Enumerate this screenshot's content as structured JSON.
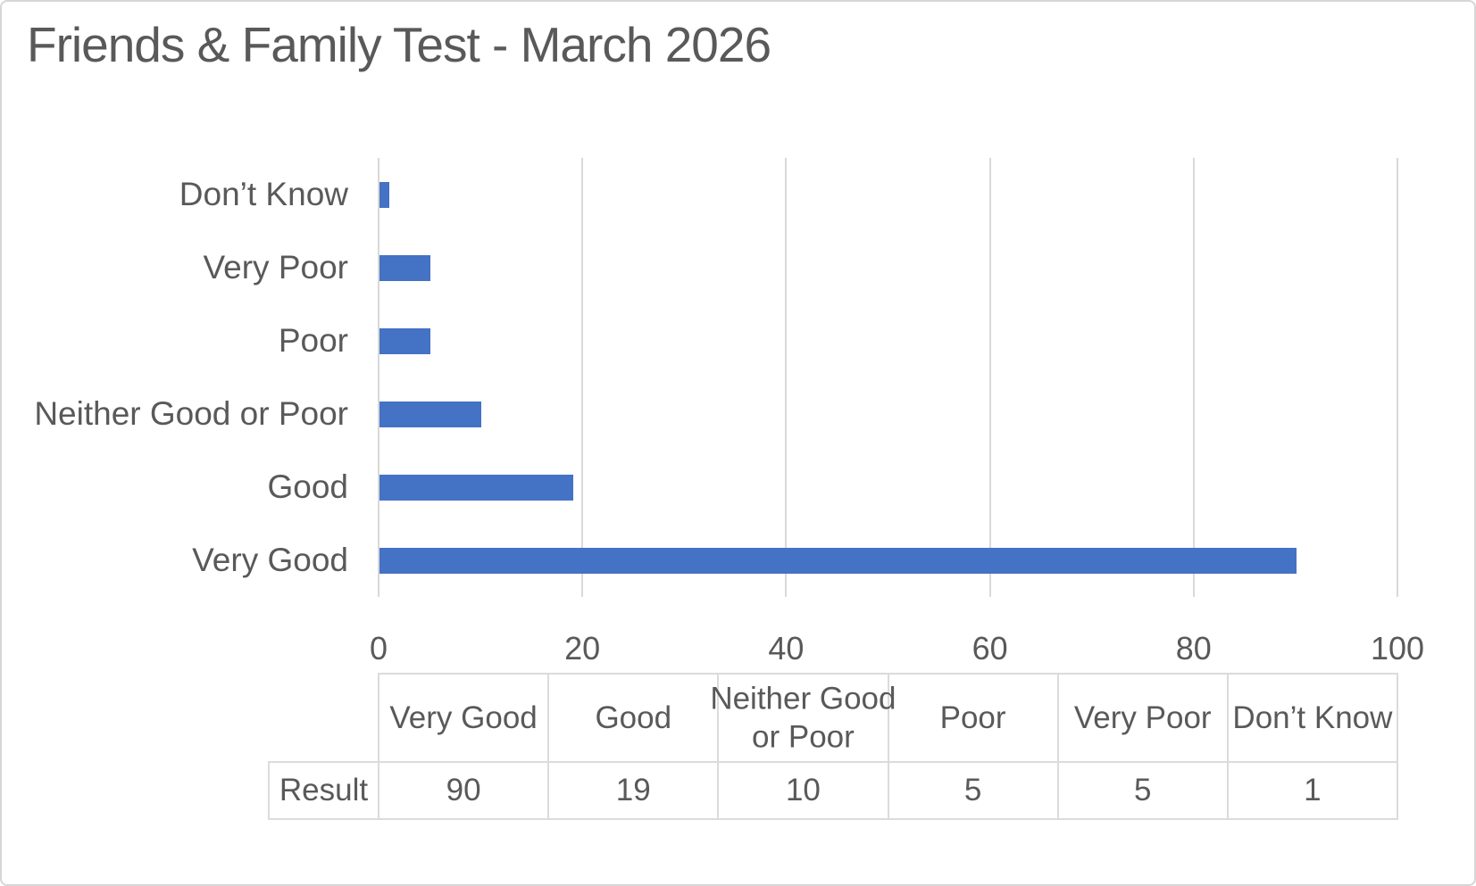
{
  "page": {
    "background": "#FFFFFF",
    "border_color": "#D6D6D6"
  },
  "chart_data": {
    "type": "bar",
    "orientation": "horizontal",
    "title": "Friends & Family Test - March 2026",
    "categories": [
      "Very Good",
      "Good",
      "Neither Good or Poor",
      "Poor",
      "Very Poor",
      "Don’t Know"
    ],
    "series": [
      {
        "name": "Result",
        "values": [
          90,
          19,
          10,
          5,
          5,
          1
        ]
      }
    ],
    "bars_top_to_bottom": [
      {
        "label": "Don’t Know",
        "value": 1
      },
      {
        "label": "Very Poor",
        "value": 5
      },
      {
        "label": "Poor",
        "value": 5
      },
      {
        "label": "Neither Good or Poor",
        "value": 10
      },
      {
        "label": "Good",
        "value": 19
      },
      {
        "label": "Very Good",
        "value": 90
      }
    ],
    "x_ticks": [
      "0",
      "20",
      "40",
      "60",
      "80",
      "100"
    ],
    "xlim": [
      0,
      100
    ],
    "grid": "vertical gridlines on",
    "legend": "none",
    "bar_color": "#4472C4",
    "gridline_color": "#D9D9D9",
    "text_color": "#595959"
  },
  "data_table": {
    "row_label": "Result",
    "columns": [
      "Very Good",
      "Good",
      "Neither Good\nor Poor",
      "Poor",
      "Very Poor",
      "Don’t Know"
    ],
    "values": [
      "90",
      "19",
      "10",
      "5",
      "5",
      "1"
    ],
    "border_color": "#DBDBDB"
  }
}
